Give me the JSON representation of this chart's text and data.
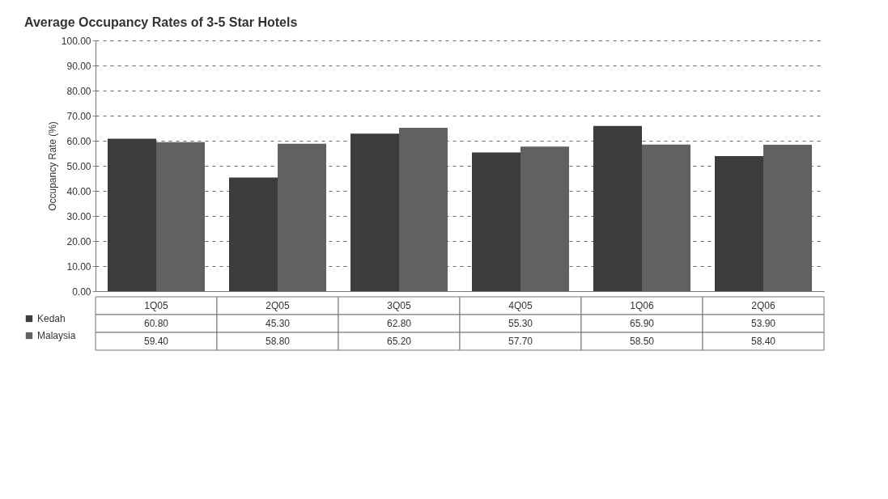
{
  "chart_data": {
    "type": "bar",
    "title": "Average Occupancy Rates of 3-5 Star Hotels",
    "ylabel": "Occupancy Rate (%)",
    "categories": [
      "1Q05",
      "2Q05",
      "3Q05",
      "4Q05",
      "1Q06",
      "2Q06"
    ],
    "series": [
      {
        "name": "Kedah",
        "color": "#3c3c3c",
        "values": [
          60.8,
          45.3,
          62.8,
          55.3,
          65.9,
          53.9
        ],
        "value_labels": [
          "60.80",
          "45.30",
          "62.80",
          "55.30",
          "65.90",
          "53.90"
        ]
      },
      {
        "name": "Malaysia",
        "color": "#616161",
        "values": [
          59.4,
          58.8,
          65.2,
          57.7,
          58.5,
          58.4
        ],
        "value_labels": [
          "59.40",
          "58.80",
          "65.20",
          "57.70",
          "58.50",
          "58.40"
        ]
      }
    ],
    "ylim": [
      0,
      100
    ],
    "yticks": [
      {
        "value": 0,
        "label": "0.00"
      },
      {
        "value": 10,
        "label": "10.00"
      },
      {
        "value": 20,
        "label": "20.00"
      },
      {
        "value": 30,
        "label": "30.00"
      },
      {
        "value": 40,
        "label": "40.00"
      },
      {
        "value": 50,
        "label": "50.00"
      },
      {
        "value": 60,
        "label": "60.00"
      },
      {
        "value": 70,
        "label": "70.00"
      },
      {
        "value": 80,
        "label": "80.00"
      },
      {
        "value": 90,
        "label": "90.00"
      },
      {
        "value": 100,
        "label": "100.00"
      }
    ],
    "grid": "y",
    "legend": "bottom left"
  }
}
